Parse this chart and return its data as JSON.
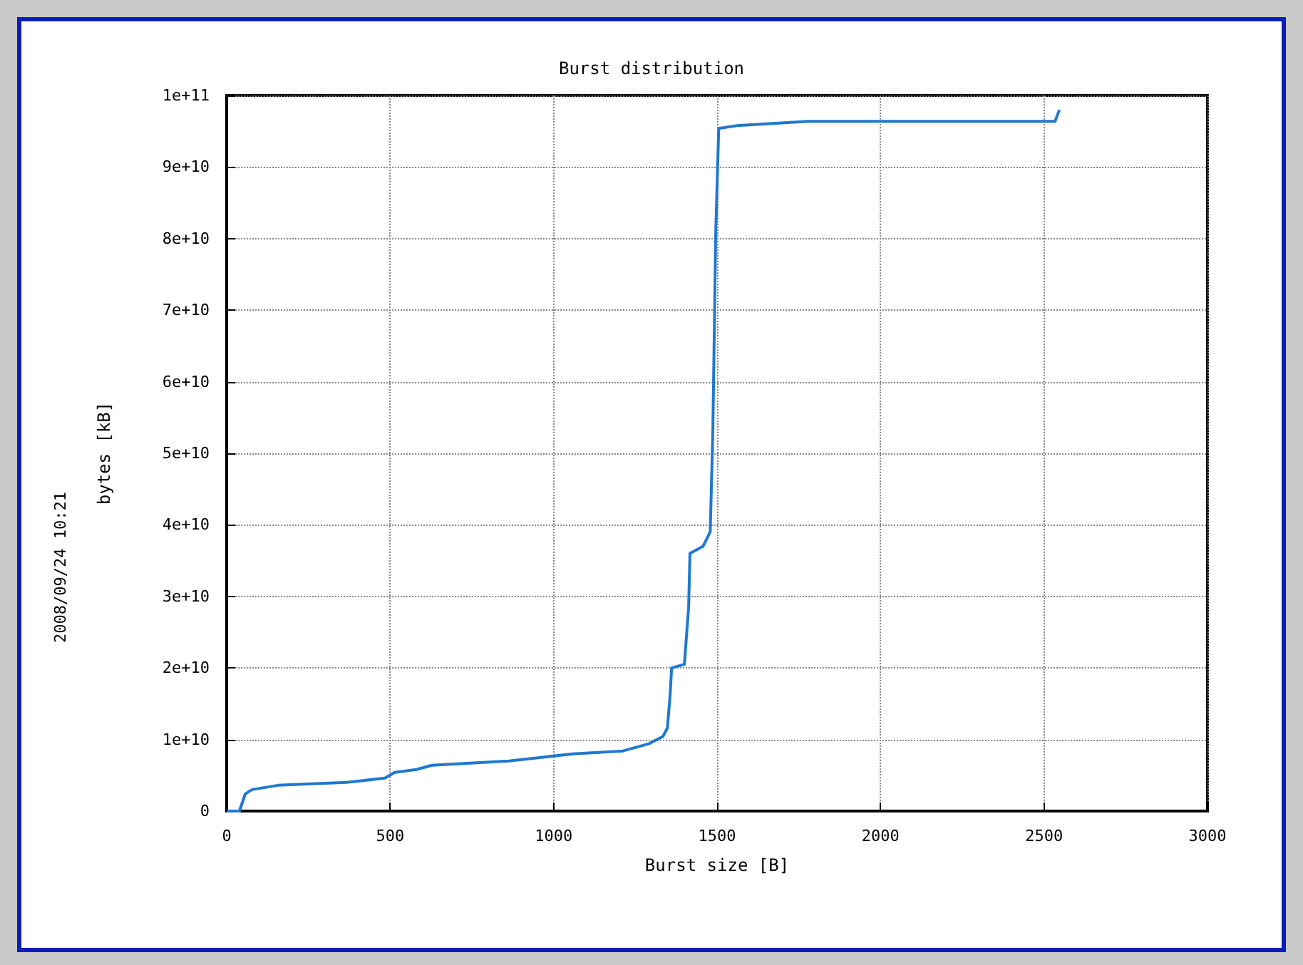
{
  "chart_data": {
    "type": "line",
    "title": "Burst distribution",
    "xlabel": "Burst size [B]",
    "ylabel": "bytes [kB]",
    "annotations": [
      "2008/09/24 10:21"
    ],
    "xlim": [
      0,
      3000
    ],
    "xticks": [
      0,
      500,
      1000,
      1500,
      2000,
      2500,
      3000
    ],
    "ylim": [
      0,
      100000000000
    ],
    "yticks": [
      {
        "value": 0,
        "label": "0"
      },
      {
        "value": 10000000000,
        "label": "1e+10"
      },
      {
        "value": 20000000000,
        "label": "2e+10"
      },
      {
        "value": 30000000000,
        "label": "3e+10"
      },
      {
        "value": 40000000000,
        "label": "4e+10"
      },
      {
        "value": 50000000000,
        "label": "5e+10"
      },
      {
        "value": 60000000000,
        "label": "6e+10"
      },
      {
        "value": 70000000000,
        "label": "7e+10"
      },
      {
        "value": 80000000000,
        "label": "8e+10"
      },
      {
        "value": 90000000000,
        "label": "9e+10"
      },
      {
        "value": 100000000000,
        "label": "1e+11"
      }
    ],
    "grid": true,
    "marker": "none",
    "line_style": "solid",
    "series": [
      {
        "color": "#1f78d1",
        "x": [
          0,
          39,
          57,
          78,
          157,
          366,
          484,
          514,
          580,
          628,
          863,
          1060,
          1212,
          1291,
          1334,
          1348,
          1356,
          1361,
          1400,
          1413,
          1417,
          1457,
          1479,
          1487,
          1496,
          1505,
          1561,
          1779,
          2534,
          2547
        ],
        "values": [
          0,
          0,
          2400000000,
          3000000000,
          3600000000,
          4000000000,
          4600000000,
          5400000000,
          5800000000,
          6400000000,
          7000000000,
          8000000000,
          8400000000,
          9400000000,
          10400000000,
          11600000000,
          16000000000,
          20000000000,
          20500000000,
          28500000000,
          36000000000,
          37000000000,
          39000000000,
          53000000000,
          81000000000,
          95400000000,
          95800000000,
          96400000000,
          96400000000,
          98000000000
        ]
      }
    ]
  }
}
